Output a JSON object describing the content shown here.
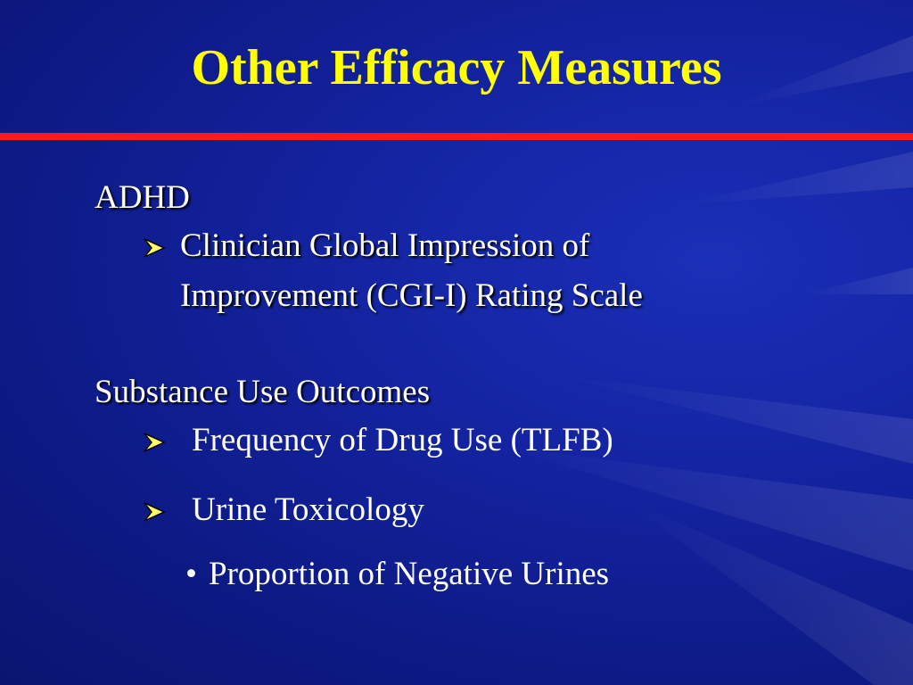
{
  "slide": {
    "title": "Other Efficacy Measures",
    "sections": {
      "adhd": {
        "heading": "ADHD",
        "items": [
          {
            "line1": "Clinician Global Impression of",
            "line2": "Improvement (CGI-I) Rating Scale"
          }
        ]
      },
      "substance": {
        "heading": "Substance Use Outcomes",
        "items": [
          {
            "text": "Frequency of Drug Use (TLFB)"
          },
          {
            "text": "Urine Toxicology"
          }
        ],
        "sub_items": [
          {
            "bullet": "•",
            "text": "Proportion of Negative Urines"
          }
        ]
      }
    }
  },
  "colors": {
    "title": "#ffff00",
    "divider": "#ff1a1a",
    "text": "#ffffff",
    "background": "#1424a2"
  },
  "icons": {
    "list_marker": "arrowhead-bullet-icon"
  }
}
